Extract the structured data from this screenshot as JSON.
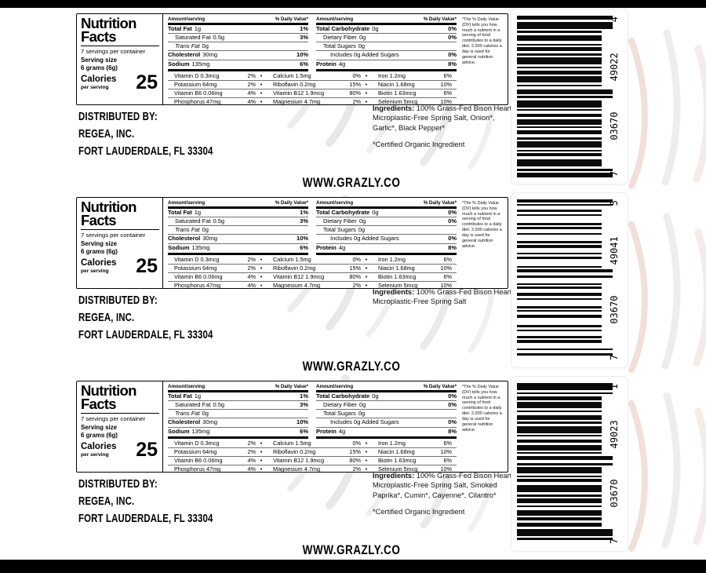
{
  "panel": {
    "title_line1": "Nutrition",
    "title_line2": "Facts",
    "servings": "7 servings per container",
    "serving_size_label": "Serving size",
    "serving_size_value": "6 grams (6g)",
    "calories_label": "Calories",
    "calories_sub": "per serving",
    "calories_value": "25",
    "col_header_amount": "Amount/serving",
    "col_header_dv": "% Daily Value*",
    "bullet": "•",
    "left_rows": [
      {
        "name": "Total Fat",
        "amount": "1g",
        "dv": "1%",
        "bold": true,
        "indent": 0
      },
      {
        "name": "Saturated Fat",
        "amount": "0.5g",
        "dv": "3%",
        "indent": 1
      },
      {
        "name": "Trans Fat",
        "amount": "0g",
        "dv": "",
        "indent": 1,
        "italic": true
      },
      {
        "name": "Cholesterol",
        "amount": "30mg",
        "dv": "10%",
        "bold": true,
        "indent": 0
      },
      {
        "name": "Sodium",
        "amount": "135mg",
        "dv": "6%",
        "bold": true,
        "indent": 0
      }
    ],
    "right_rows": [
      {
        "name": "Total Carbohydrate",
        "amount": "0g",
        "dv": "0%",
        "bold": true,
        "indent": 0
      },
      {
        "name": "Dietary Fiber",
        "amount": "0g",
        "dv": "0%",
        "indent": 1
      },
      {
        "name": "Total Sugars",
        "amount": "0g",
        "dv": "",
        "indent": 1
      },
      {
        "name": "Includes 0g Added Sugars",
        "amount": "",
        "dv": "0%",
        "indent": 2
      },
      {
        "name": "Protein",
        "amount": "4g",
        "dv": "8%",
        "bold": true,
        "indent": 0
      }
    ],
    "micros": [
      {
        "n1": "Vitamin D 0.3mcg",
        "p1": "2%",
        "n2": "Calcium 1.5mg",
        "p2": "0%",
        "n3": "Iron 1.2mg",
        "p3": "6%"
      },
      {
        "n1": "Potassium 64mg",
        "p1": "2%",
        "n2": "Riboflavin 0.2mg",
        "p2": "15%",
        "n3": "Niacin 1.68mg",
        "p3": "10%"
      },
      {
        "n1": "Vitamin B6 0.06mg",
        "p1": "4%",
        "n2": "Vitamin B12 1.9mcg",
        "p2": "80%",
        "n3": "Biotin 1.63mcg",
        "p3": "6%"
      },
      {
        "n1": "Phosphorus 47mg",
        "p1": "4%",
        "n2": "Magnesium 4.7mg",
        "p2": "2%",
        "n3": "Selenium 5mcg",
        "p3": "10%"
      }
    ],
    "footnote": "*The % Daily Value (DV) tells you how much a nutrient in a serving of food contributes to a daily diet. 2,000 calories a day is used for general nutrition advice."
  },
  "distributor": {
    "line1": "DISTRIBUTED BY:",
    "line2": "REGEA, INC.",
    "line3": "FORT LAUDERDALE, FL 33304"
  },
  "website": "WWW.GRAZLY.CO",
  "labels": [
    {
      "ingredients_title": "Ingredients:",
      "ingredients_text": "100% Grass-Fed Bison Heart, Microplastic-Free Spring Salt, Onion*, Garlic*, Black Pepper*",
      "organic_note": "*Certified Organic Ingredient",
      "barcode_digits": [
        "7",
        "03670",
        "49022",
        "4"
      ]
    },
    {
      "ingredients_title": "Ingredients:",
      "ingredients_text": "100% Grass-Fed Bison Heart, Microplastic-Free Spring Salt",
      "organic_note": "",
      "barcode_digits": [
        "7",
        "03670",
        "49041",
        "5"
      ]
    },
    {
      "ingredients_title": "Ingredients:",
      "ingredients_text": "100% Grass-Fed Bison Heart, Microplastic-Free Spring Salt, Smoked Paprika*, Cumin*, Cayenne*, Cilantro*",
      "organic_note": "*Certified Organic Ingredient",
      "barcode_digits": [
        "7",
        "03670",
        "49023",
        "1"
      ]
    }
  ]
}
